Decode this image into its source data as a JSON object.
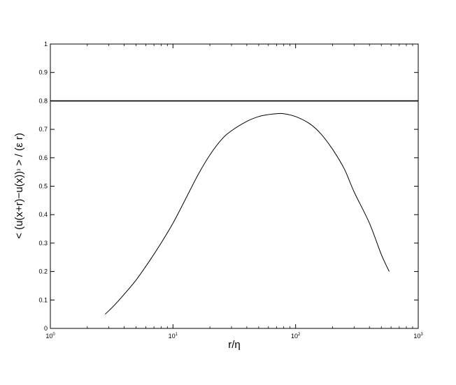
{
  "chart_data": {
    "type": "line",
    "title": "",
    "xlabel": "r/η",
    "ylabel": "< (u(x+r)−u(x))",
    "ylabel_exponent": "3",
    "ylabel_tail": " > / (ε r)",
    "x_scale": "log",
    "xlim": [
      1,
      1000
    ],
    "ylim": [
      0,
      1
    ],
    "x_ticks": [
      {
        "value": 1,
        "base": "10",
        "exp": "0"
      },
      {
        "value": 10,
        "base": "10",
        "exp": "1"
      },
      {
        "value": 100,
        "base": "10",
        "exp": "2"
      },
      {
        "value": 1000,
        "base": "10",
        "exp": "3"
      }
    ],
    "y_ticks": [
      "0",
      "0.1",
      "0.2",
      "0.3",
      "0.4",
      "0.5",
      "0.6",
      "0.7",
      "0.8",
      "0.9",
      "1"
    ],
    "grid": false,
    "reference_line": {
      "y": 0.8
    },
    "series": [
      {
        "color": "#000000",
        "x": [
          2.8,
          3.3,
          4.0,
          5.0,
          6.5,
          8.0,
          10,
          12.5,
          16,
          20,
          25,
          30,
          40,
          50,
          60,
          70,
          80,
          100,
          130,
          160,
          200,
          250,
          300,
          400,
          500,
          580
        ],
        "y": [
          0.05,
          0.08,
          0.12,
          0.17,
          0.24,
          0.3,
          0.37,
          0.45,
          0.54,
          0.61,
          0.665,
          0.695,
          0.728,
          0.745,
          0.752,
          0.755,
          0.755,
          0.745,
          0.72,
          0.685,
          0.63,
          0.56,
          0.48,
          0.37,
          0.26,
          0.2
        ]
      }
    ]
  }
}
